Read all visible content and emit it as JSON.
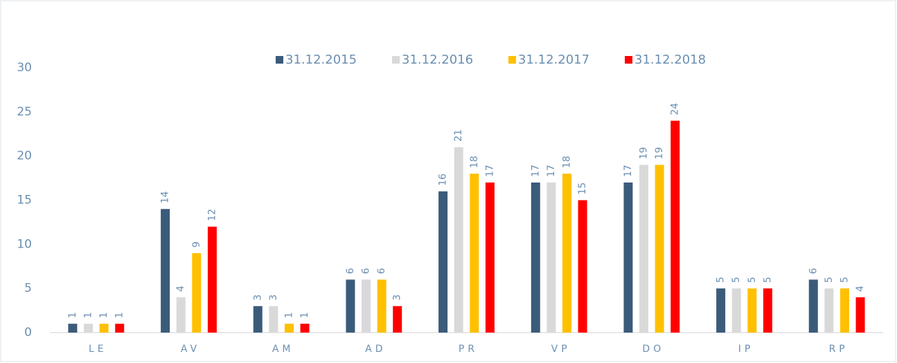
{
  "chart_data": {
    "type": "bar",
    "categories": [
      "LE",
      "AV",
      "AM",
      "AD",
      "PR",
      "VP",
      "DO",
      "IP",
      "RP"
    ],
    "series": [
      {
        "name": "31.12.2015",
        "color": "#3b5b7a",
        "values": [
          1,
          14,
          3,
          6,
          16,
          17,
          17,
          5,
          6
        ]
      },
      {
        "name": "31.12.2016",
        "color": "#d9d9d9",
        "values": [
          1,
          4,
          3,
          6,
          21,
          17,
          19,
          5,
          5
        ]
      },
      {
        "name": "31.12.2017",
        "color": "#ffc000",
        "values": [
          1,
          9,
          1,
          6,
          18,
          18,
          19,
          5,
          5
        ]
      },
      {
        "name": "31.12.2018",
        "color": "#ff0000",
        "values": [
          1,
          12,
          1,
          3,
          17,
          15,
          24,
          5,
          4
        ]
      }
    ],
    "ylim": [
      0,
      30
    ],
    "yticks": [
      0,
      5,
      10,
      15,
      20,
      25,
      30
    ],
    "grid": false,
    "legend": "top"
  }
}
